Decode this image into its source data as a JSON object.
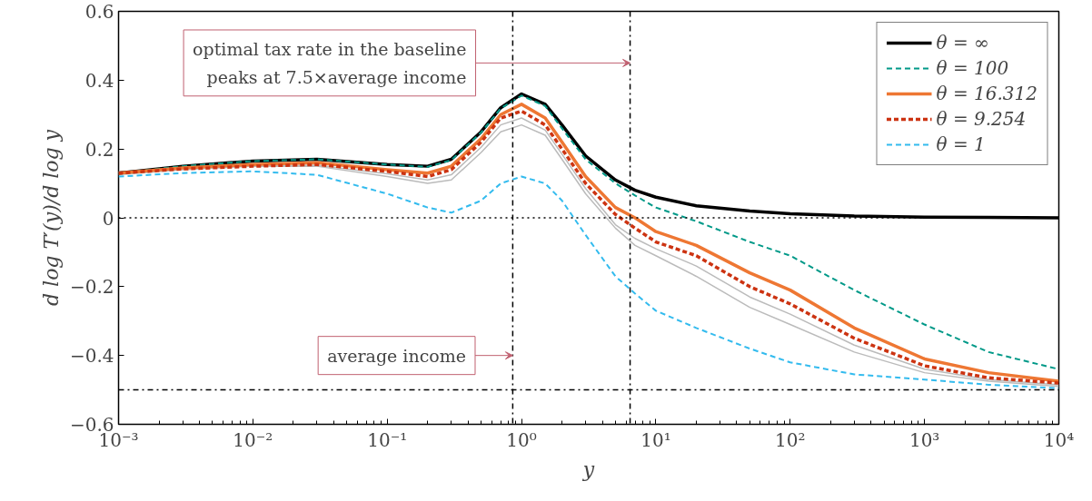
{
  "chart_data": {
    "type": "line",
    "xlabel": "y",
    "ylabel": "d log T′(y)/d log y",
    "log": "x",
    "grid": false,
    "legend": "top right",
    "marker": "none",
    "x": [
      0.001,
      0.003,
      0.01,
      0.03,
      0.1,
      0.2,
      0.3,
      0.5,
      0.7,
      1,
      1.5,
      2,
      3,
      5,
      7,
      10,
      20,
      50,
      100,
      300,
      1000,
      3000,
      10000
    ],
    "xlim": [
      0.001,
      10000
    ],
    "xticks": [
      {
        "value": 0.001,
        "label": "10⁻³"
      },
      {
        "value": 0.01,
        "label": "10⁻²"
      },
      {
        "value": 0.1,
        "label": "10⁻¹"
      },
      {
        "value": 1,
        "label": "10⁰"
      },
      {
        "value": 10,
        "label": "10¹"
      },
      {
        "value": 100,
        "label": "10²"
      },
      {
        "value": 1000,
        "label": "10³"
      },
      {
        "value": 10000,
        "label": "10⁴"
      }
    ],
    "ylim": [
      -0.6,
      0.6
    ],
    "yticks": [
      {
        "value": -0.6,
        "label": "−0.6"
      },
      {
        "value": -0.4,
        "label": "−0.4"
      },
      {
        "value": -0.2,
        "label": "−0.2"
      },
      0,
      0.2,
      0.4,
      0.6
    ],
    "series": [
      {
        "color": "#bbbbbb",
        "line_style": "solid",
        "values": [
          0.125,
          0.14,
          0.15,
          0.15,
          0.12,
          0.1,
          0.11,
          0.19,
          0.25,
          0.27,
          0.24,
          0.17,
          0.07,
          -0.03,
          -0.08,
          -0.11,
          -0.17,
          -0.26,
          -0.31,
          -0.39,
          -0.45,
          -0.475,
          -0.49
        ]
      },
      {
        "color": "#bbbbbb",
        "line_style": "solid",
        "values": [
          0.134,
          0.145,
          0.15,
          0.153,
          0.128,
          0.11,
          0.125,
          0.205,
          0.27,
          0.29,
          0.255,
          0.185,
          0.085,
          -0.02,
          -0.06,
          -0.09,
          -0.14,
          -0.23,
          -0.28,
          -0.37,
          -0.44,
          -0.47,
          -0.485
        ]
      },
      {
        "name": "θ = ∞",
        "color": "#000000",
        "line_style": "solid",
        "values": [
          0.13,
          0.15,
          0.165,
          0.17,
          0.155,
          0.15,
          0.17,
          0.25,
          0.32,
          0.36,
          0.33,
          0.27,
          0.18,
          0.11,
          0.08,
          0.06,
          0.035,
          0.02,
          0.012,
          0.005,
          0.002,
          0.001,
          0
        ]
      },
      {
        "name": "θ = 100",
        "color": "#009988",
        "line_style": "dashed",
        "values": [
          0.13,
          0.15,
          0.165,
          0.17,
          0.155,
          0.148,
          0.168,
          0.248,
          0.318,
          0.355,
          0.325,
          0.26,
          0.17,
          0.1,
          0.065,
          0.03,
          -0.01,
          -0.07,
          -0.11,
          -0.21,
          -0.31,
          -0.39,
          -0.44
        ]
      },
      {
        "name": "θ = 16.312",
        "color": "#ee7733",
        "line_style": "solid",
        "values": [
          0.13,
          0.145,
          0.155,
          0.16,
          0.14,
          0.13,
          0.15,
          0.23,
          0.3,
          0.33,
          0.29,
          0.22,
          0.12,
          0.03,
          0.0,
          -0.04,
          -0.08,
          -0.16,
          -0.21,
          -0.32,
          -0.41,
          -0.45,
          -0.475
        ]
      },
      {
        "name": "θ = 9.254",
        "color": "#cc3311",
        "line_style": "dashed",
        "values": [
          0.13,
          0.142,
          0.15,
          0.155,
          0.135,
          0.12,
          0.14,
          0.22,
          0.29,
          0.31,
          0.27,
          0.2,
          0.1,
          0.01,
          -0.03,
          -0.07,
          -0.11,
          -0.2,
          -0.25,
          -0.35,
          -0.43,
          -0.465,
          -0.48
        ]
      },
      {
        "name": "θ = 1",
        "color": "#33bbee",
        "line_style": "dashed",
        "values": [
          0.12,
          0.13,
          0.135,
          0.125,
          0.07,
          0.03,
          0.015,
          0.05,
          0.1,
          0.12,
          0.1,
          0.05,
          -0.05,
          -0.17,
          -0.22,
          -0.27,
          -0.32,
          -0.38,
          -0.42,
          -0.455,
          -0.47,
          -0.485,
          -0.495
        ]
      }
    ],
    "ref_lines": [
      {
        "axis": "x",
        "value": 0.86,
        "line_style": "dashdot",
        "color": "#000000"
      },
      {
        "axis": "x",
        "value": 6.43,
        "line_style": "dashdot",
        "color": "#000000"
      },
      {
        "axis": "y",
        "value": -0.5,
        "line_style": "dashdot",
        "color": "#000000"
      },
      {
        "axis": "y",
        "value": 0,
        "line_style": "dotted",
        "color": "#000000"
      }
    ],
    "annotations": [
      {
        "text": "optimal tax rate in the baseline\npeaks at 7.5×average income",
        "x": 6.43,
        "y": 0.45
      },
      {
        "text": "average income",
        "x": 0.86,
        "y": -0.4
      }
    ]
  }
}
